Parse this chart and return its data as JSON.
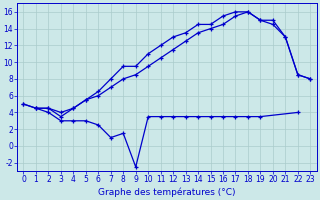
{
  "xlabel": "Graphe des températures (°C)",
  "background_color": "#cce8e8",
  "grid_color": "#aacccc",
  "line_color": "#0000cc",
  "xlim": [
    -0.5,
    23.5
  ],
  "ylim": [
    -3,
    17
  ],
  "yticks": [
    -2,
    0,
    2,
    4,
    6,
    8,
    10,
    12,
    14,
    16
  ],
  "xticks": [
    0,
    1,
    2,
    3,
    4,
    5,
    6,
    7,
    8,
    9,
    10,
    11,
    12,
    13,
    14,
    15,
    16,
    17,
    18,
    19,
    20,
    21,
    22,
    23
  ],
  "line1_x": [
    0,
    1,
    2,
    3,
    4,
    5,
    6,
    7,
    8,
    9,
    10,
    11,
    12,
    13,
    14,
    15,
    16,
    17,
    18,
    19,
    20,
    21,
    22,
    23
  ],
  "line1_y": [
    5,
    4.5,
    4.5,
    4.0,
    4.5,
    5.5,
    6.5,
    8.0,
    9.5,
    9.5,
    11.0,
    12.0,
    13.0,
    13.5,
    14.5,
    14.5,
    15.5,
    16.0,
    16.0,
    15.0,
    15.0,
    13.0,
    8.5,
    8.0
  ],
  "line2_x": [
    0,
    1,
    2,
    3,
    4,
    5,
    6,
    7,
    8,
    9,
    10,
    11,
    12,
    13,
    14,
    15,
    16,
    17,
    18,
    19,
    20,
    21,
    22,
    23
  ],
  "line2_y": [
    5,
    4.5,
    4.5,
    3.5,
    4.5,
    5.5,
    6.0,
    7.0,
    8.0,
    8.5,
    9.5,
    10.5,
    11.5,
    12.5,
    13.5,
    14.0,
    14.5,
    15.5,
    16.0,
    15.0,
    14.5,
    13.0,
    8.5,
    8.0
  ],
  "line3_x": [
    1,
    2,
    3,
    4,
    5,
    6,
    7,
    8,
    9,
    10,
    11,
    12,
    13,
    14,
    15,
    16,
    17,
    18,
    19,
    22
  ],
  "line3_y": [
    4.5,
    4.0,
    3.0,
    3.0,
    3.0,
    2.5,
    1.0,
    1.5,
    -2.5,
    3.5,
    3.5,
    3.5,
    3.5,
    3.5,
    3.5,
    3.5,
    3.5,
    3.5,
    3.5,
    4.0
  ],
  "tick_fontsize": 5.5,
  "xlabel_fontsize": 6.5
}
